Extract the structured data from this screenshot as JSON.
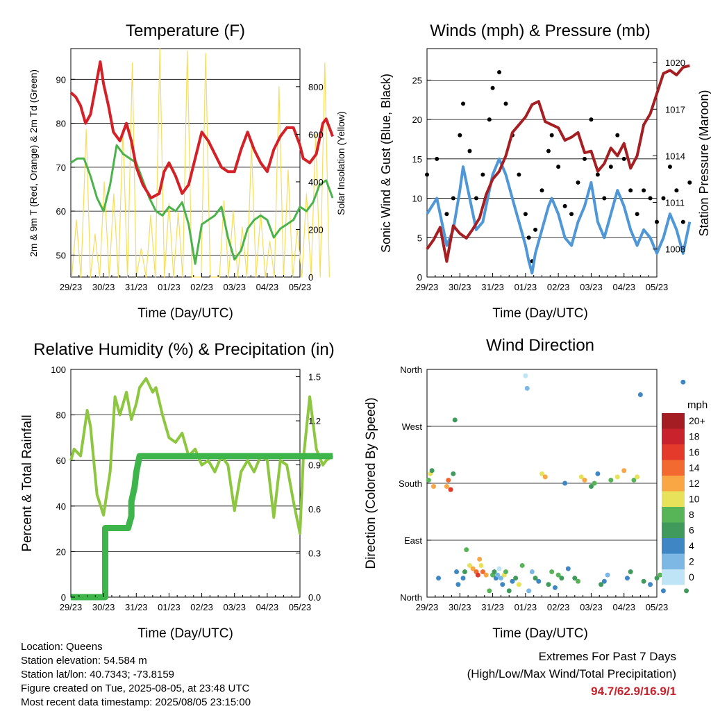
{
  "x_ticks": [
    "29/23",
    "30/23",
    "31/23",
    "01/23",
    "02/23",
    "03/23",
    "04/23",
    "05/23"
  ],
  "time_axis_label": "Time (Day/UTC)",
  "chart_data": [
    {
      "type": "line",
      "title": "Temperature (F)",
      "xlabel": "Time (Day/UTC)",
      "ylabel": "2m & 9m T (Red, Orange) & 2m Td (Green)",
      "ylabel_right": "Solar Insolation (Yellow)",
      "ylim": [
        45,
        97
      ],
      "y2lim": [
        0,
        960
      ],
      "y_ticks": [
        50,
        60,
        70,
        80,
        90
      ],
      "y2_ticks": [
        0,
        200,
        400,
        600,
        800
      ],
      "colors": {
        "temperature": "#d42027",
        "dewpoint": "#4bb34b",
        "insolation": "#f6dd5a"
      },
      "series": [
        {
          "values_x": [
            0,
            0.15,
            0.3,
            0.45,
            0.6,
            0.75,
            0.9,
            1,
            1.15,
            1.3,
            1.5,
            1.7,
            1.85,
            2,
            2.2,
            2.45,
            2.7,
            2.85,
            3,
            3.2,
            3.4,
            3.6,
            3.8,
            4,
            4.2,
            4.4,
            4.6,
            4.8,
            5,
            5.2,
            5.4,
            5.6,
            5.8,
            6,
            6.2,
            6.4,
            6.6,
            6.8,
            7,
            7.1,
            7.3,
            7.5,
            7.7,
            7.8,
            7.95,
            8
          ],
          "values": [
            87,
            86,
            84,
            80,
            82,
            88,
            94,
            89,
            84,
            78,
            76,
            80,
            76,
            70,
            66,
            63,
            64,
            69,
            71,
            68,
            64,
            66,
            72,
            78,
            76,
            73,
            70,
            69,
            69,
            74,
            78,
            74,
            71,
            69,
            74,
            77,
            79,
            79,
            75,
            72,
            71,
            73,
            80,
            81,
            78,
            77
          ]
        },
        {
          "values_x": [
            0,
            0.2,
            0.4,
            0.6,
            0.8,
            1,
            1.2,
            1.4,
            1.6,
            1.8,
            2,
            2.2,
            2.4,
            2.6,
            2.8,
            3,
            3.2,
            3.4,
            3.6,
            3.8,
            4,
            4.2,
            4.4,
            4.6,
            4.8,
            5,
            5.2,
            5.4,
            5.6,
            5.8,
            6,
            6.2,
            6.4,
            6.6,
            6.8,
            7,
            7.2,
            7.4,
            7.6,
            7.8,
            8
          ],
          "values": [
            71,
            72,
            72,
            68,
            63,
            60,
            66,
            75,
            73,
            72,
            71,
            67,
            63,
            60,
            59,
            61,
            60,
            62,
            57,
            48,
            57,
            58,
            59,
            61,
            54,
            49,
            51,
            56,
            58,
            59,
            58,
            54,
            56,
            57,
            58,
            61,
            60,
            62,
            66,
            67,
            63
          ]
        },
        {
          "values_x": [
            0.03,
            0.17,
            0.31,
            0.47,
            0.6,
            0.74,
            0.88,
            1.02,
            1.17,
            1.31,
            1.45,
            1.59,
            1.73,
            1.88,
            2,
            2.15,
            2.3,
            2.44,
            2.58,
            2.72,
            2.86,
            3,
            3.14,
            3.28,
            3.42,
            3.56,
            3.7,
            3.84,
            3.98,
            4.12,
            4.26,
            4.4,
            4.54,
            4.68,
            4.82,
            4.96,
            5.1,
            5.24,
            5.38,
            5.52,
            5.66,
            5.8,
            5.94,
            6.08,
            6.22,
            6.36,
            6.5,
            6.64,
            6.78,
            6.92,
            7.06,
            7.2,
            7.34,
            7.48,
            7.62,
            7.76,
            7.9
          ],
          "values": [
            0,
            240,
            0,
            620,
            0,
            180,
            0,
            400,
            0,
            350,
            0,
            620,
            0,
            900,
            0,
            120,
            0,
            260,
            0,
            960,
            0,
            310,
            0,
            270,
            0,
            950,
            0,
            0,
            0,
            940,
            0,
            0,
            0,
            320,
            0,
            280,
            0,
            210,
            0,
            550,
            0,
            270,
            0,
            150,
            0,
            800,
            0,
            450,
            0,
            200,
            0,
            350,
            0,
            600,
            0,
            900,
            0
          ]
        }
      ]
    },
    {
      "type": "scatter",
      "title": "Winds (mph) & Pressure (mb)",
      "xlabel": "Time (Day/UTC)",
      "ylabel": "Sonic Wind & Gust (Blue, Black)",
      "ylabel_right": "Station Pressure (Maroon)",
      "ylim": [
        0,
        29
      ],
      "y2lim": [
        1006.2,
        1020.9
      ],
      "y_ticks": [
        0,
        5,
        10,
        15,
        20,
        25
      ],
      "y2_ticks": [
        1008,
        1011,
        1014,
        1017,
        1020
      ],
      "colors": {
        "wind": "#4f97d6",
        "gust": "#000000",
        "pressure": "#a51e22"
      },
      "wind": {
        "x": [
          0,
          0.3,
          0.6,
          0.8,
          1,
          1.1,
          1.3,
          1.5,
          1.7,
          1.9,
          2,
          2.2,
          2.4,
          2.6,
          2.8,
          3,
          3.1,
          3.2,
          3.3,
          3.5,
          3.7,
          3.8,
          4,
          4.2,
          4.4,
          4.6,
          4.8,
          5,
          5.2,
          5.4,
          5.6,
          5.8,
          6,
          6.2,
          6.4,
          6.6,
          6.8,
          7,
          7.2,
          7.4,
          7.6,
          7.8,
          8
        ],
        "y": [
          8,
          10,
          4,
          6,
          11,
          14,
          10,
          6,
          7,
          11,
          13,
          15,
          13,
          10,
          7,
          4,
          2,
          0.5,
          3,
          6,
          9,
          10,
          8,
          5,
          4,
          7,
          9,
          12,
          7,
          5,
          8,
          11,
          9,
          6,
          4,
          6,
          5,
          3,
          5,
          8,
          6,
          3,
          7
        ]
      },
      "gust": {
        "x": [
          0,
          0.3,
          0.6,
          0.8,
          1,
          1.1,
          1.3,
          1.5,
          1.7,
          1.9,
          2,
          2.2,
          2.4,
          2.6,
          2.8,
          3,
          3.1,
          3.2,
          3.3,
          3.5,
          3.7,
          3.8,
          4,
          4.2,
          4.4,
          4.6,
          4.8,
          5,
          5.2,
          5.4,
          5.6,
          5.8,
          6,
          6.2,
          6.4,
          6.6,
          6.8,
          7,
          7.2,
          7.4,
          7.6,
          7.8,
          8
        ],
        "y": [
          13,
          15,
          8,
          10,
          18,
          22,
          16,
          10,
          13,
          20,
          24,
          26,
          22,
          18,
          13,
          8,
          5,
          2,
          6,
          11,
          16,
          18,
          14,
          9,
          8,
          12,
          15,
          20,
          13,
          10,
          14,
          18,
          15,
          11,
          8,
          11,
          10,
          7,
          10,
          14,
          11,
          7,
          12
        ]
      },
      "pressure": {
        "x": [
          0,
          0.2,
          0.4,
          0.6,
          0.8,
          1,
          1.2,
          1.4,
          1.6,
          1.8,
          2,
          2.2,
          2.4,
          2.6,
          2.8,
          3,
          3.2,
          3.4,
          3.6,
          3.8,
          4,
          4.2,
          4.4,
          4.6,
          4.8,
          5,
          5.2,
          5.4,
          5.6,
          5.8,
          6,
          6.2,
          6.4,
          6.6,
          6.8,
          7,
          7.2,
          7.4,
          7.6,
          7.8,
          8
        ],
        "y": [
          1008.0,
          1008.6,
          1009.4,
          1007.2,
          1009.5,
          1009.0,
          1008.7,
          1009.3,
          1010.0,
          1011.5,
          1012.5,
          1013.0,
          1014.0,
          1015.5,
          1016.0,
          1016.5,
          1017.3,
          1017.5,
          1016.2,
          1016.0,
          1015.8,
          1015.0,
          1015.2,
          1015.5,
          1014.2,
          1014.3,
          1013.0,
          1013.5,
          1014.5,
          1014.0,
          1014.8,
          1013.2,
          1014.0,
          1016.0,
          1016.7,
          1018.0,
          1019.3,
          1019.5,
          1019.2,
          1019.7,
          1019.8
        ]
      }
    },
    {
      "type": "line",
      "title": "Relative Humidity (%) & Precipitation (in)",
      "xlabel": "Time (Day/UTC)",
      "ylabel": "Percent & Total Rainfall",
      "ylim": [
        0,
        100
      ],
      "y2lim": [
        0,
        1.55
      ],
      "y_ticks": [
        0,
        20,
        40,
        60,
        80,
        100
      ],
      "y2_ticks": [
        0.0,
        0.3,
        0.6,
        0.9,
        1.2,
        1.5
      ],
      "colors": {
        "rh": "#8dc63f",
        "precip": "#3db54a"
      },
      "series": [
        {
          "values_x": [
            0,
            0.1,
            0.3,
            0.5,
            0.6,
            0.8,
            1,
            1.2,
            1.35,
            1.5,
            1.7,
            1.85,
            2,
            2.1,
            2.3,
            2.5,
            2.6,
            2.8,
            3,
            3.2,
            3.4,
            3.6,
            3.8,
            4,
            4.2,
            4.4,
            4.6,
            4.8,
            5,
            5.2,
            5.4,
            5.6,
            5.8,
            6,
            6.2,
            6.4,
            6.6,
            6.8,
            7,
            7.1,
            7.3,
            7.5,
            7.7,
            7.8,
            8
          ],
          "values": [
            60,
            65,
            62,
            82,
            75,
            45,
            36,
            55,
            88,
            80,
            90,
            78,
            85,
            92,
            96,
            90,
            92,
            80,
            70,
            68,
            72,
            62,
            65,
            58,
            60,
            55,
            62,
            58,
            38,
            55,
            60,
            55,
            62,
            60,
            35,
            60,
            58,
            42,
            28,
            60,
            88,
            65,
            58,
            60,
            62
          ]
        },
        {
          "values_x": [
            0,
            0.9,
            1.05,
            1.05,
            1.75,
            1.85,
            1.85,
            1.95,
            2,
            2.1,
            8
          ],
          "values": [
            0.0,
            0.0,
            0.0,
            0.47,
            0.47,
            0.55,
            0.65,
            0.75,
            0.85,
            0.96,
            0.96
          ]
        }
      ]
    },
    {
      "type": "scatter",
      "title": "Wind Direction",
      "xlabel": "Time (Day/UTC)",
      "ylabel": "Direction (Colored By Speed)",
      "y_ticks": [
        "North",
        "East",
        "South",
        "West",
        "North"
      ],
      "ylim": [
        0,
        360
      ],
      "legend_title": "mph",
      "legend_labels": [
        "20+",
        "18",
        "16",
        "14",
        "12",
        "10",
        "8",
        "6",
        "4",
        "2",
        "0"
      ],
      "legend_colors": [
        "#a31d22",
        "#c8232c",
        "#e33a2c",
        "#f26a2f",
        "#f9a644",
        "#e6e25a",
        "#57b557",
        "#3f9a5b",
        "#3f86c4",
        "#7db8e4",
        "#bfe4f6"
      ],
      "x": [
        0.05,
        0.1,
        0.15,
        0.2,
        0.35,
        0.6,
        0.65,
        0.72,
        0.8,
        0.85,
        0.9,
        0.95,
        1.1,
        1.15,
        1.2,
        1.3,
        1.4,
        1.5,
        1.55,
        1.6,
        1.65,
        1.7,
        1.8,
        1.9,
        2,
        2.05,
        2.1,
        2.15,
        2.2,
        2.25,
        2.3,
        2.35,
        2.4,
        2.5,
        2.6,
        2.7,
        2.8,
        2.9,
        3,
        3.05,
        3.1,
        3.2,
        3.3,
        3.4,
        3.5,
        3.6,
        3.7,
        3.8,
        3.9,
        4,
        4.1,
        4.2,
        4.3,
        4.5,
        4.6,
        4.7,
        4.8,
        5,
        5.1,
        5.2,
        5.3,
        5.4,
        5.5,
        5.6,
        5.8,
        6,
        6.1,
        6.2,
        6.3,
        6.4,
        6.5,
        6.6,
        6.8,
        7,
        7.1,
        7.2,
        7.3,
        7.4,
        7.6,
        7.8,
        7.9
      ],
      "y": [
        185,
        195,
        200,
        175,
        30,
        175,
        185,
        170,
        195,
        280,
        40,
        20,
        30,
        40,
        75,
        50,
        45,
        40,
        35,
        60,
        50,
        40,
        35,
        10,
        35,
        40,
        30,
        35,
        45,
        30,
        20,
        35,
        40,
        10,
        25,
        30,
        20,
        50,
        350,
        330,
        10,
        40,
        30,
        25,
        195,
        190,
        20,
        40,
        15,
        35,
        30,
        180,
        45,
        30,
        25,
        190,
        185,
        175,
        180,
        195,
        20,
        25,
        35,
        185,
        190,
        200,
        30,
        40,
        185,
        190,
        320,
        25,
        20,
        30,
        35,
        10,
        165,
        150,
        175,
        340,
        10
      ],
      "speed": [
        8,
        10,
        6,
        12,
        4,
        12,
        14,
        16,
        6,
        6,
        4,
        4,
        4,
        6,
        8,
        10,
        12,
        14,
        16,
        12,
        10,
        14,
        12,
        8,
        8,
        6,
        4,
        2,
        0,
        2,
        4,
        10,
        8,
        6,
        4,
        6,
        10,
        8,
        0,
        2,
        2,
        2,
        6,
        4,
        10,
        12,
        6,
        8,
        4,
        8,
        6,
        4,
        4,
        6,
        8,
        10,
        12,
        6,
        8,
        4,
        6,
        4,
        2,
        8,
        10,
        12,
        4,
        6,
        8,
        10,
        4,
        6,
        4,
        6,
        8,
        4,
        8,
        6,
        10,
        4,
        6
      ]
    }
  ],
  "footer": {
    "location": "Location: Queens",
    "elevation": "Station elevation: 54.584 m",
    "latlon": "Station lat/lon: 40.7343; -73.8159",
    "created": "Figure created on Tue, 2025-08-05, at 23:48 UTC",
    "recent": "Most recent data timestamp: 2025/08/05 23:15:00"
  },
  "extremes": {
    "line1": "Extremes For Past 7 Days",
    "line2": "(High/Low/Max Wind/Total Precipitation)",
    "values": "94.7/62.9/16.9/1"
  }
}
